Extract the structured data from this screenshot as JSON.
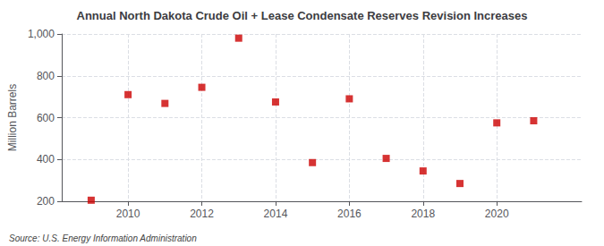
{
  "chart_data": {
    "type": "scatter",
    "title": "Annual North Dakota Crude Oil + Lease Condensate Reserves Revision Increases",
    "ylabel": "Million Barrels",
    "annotations": [
      "Source: U.S. Energy Information Administration"
    ],
    "x": [
      2009,
      2010,
      2011,
      2012,
      2013,
      2014,
      2015,
      2016,
      2017,
      2018,
      2019,
      2020,
      2021
    ],
    "values": [
      205,
      710,
      668,
      745,
      980,
      675,
      385,
      690,
      405,
      345,
      285,
      575,
      585
    ],
    "color": "#cc0000",
    "marker": "square",
    "xlim": [
      2008.2,
      2022.3
    ],
    "xticks": [
      2010,
      2012,
      2014,
      2016,
      2018,
      2020
    ],
    "ylim": [
      200,
      1000
    ],
    "yticks": [
      200,
      400,
      600,
      800,
      {
        "value": 1000,
        "label": "1,000"
      }
    ],
    "grid": true
  }
}
